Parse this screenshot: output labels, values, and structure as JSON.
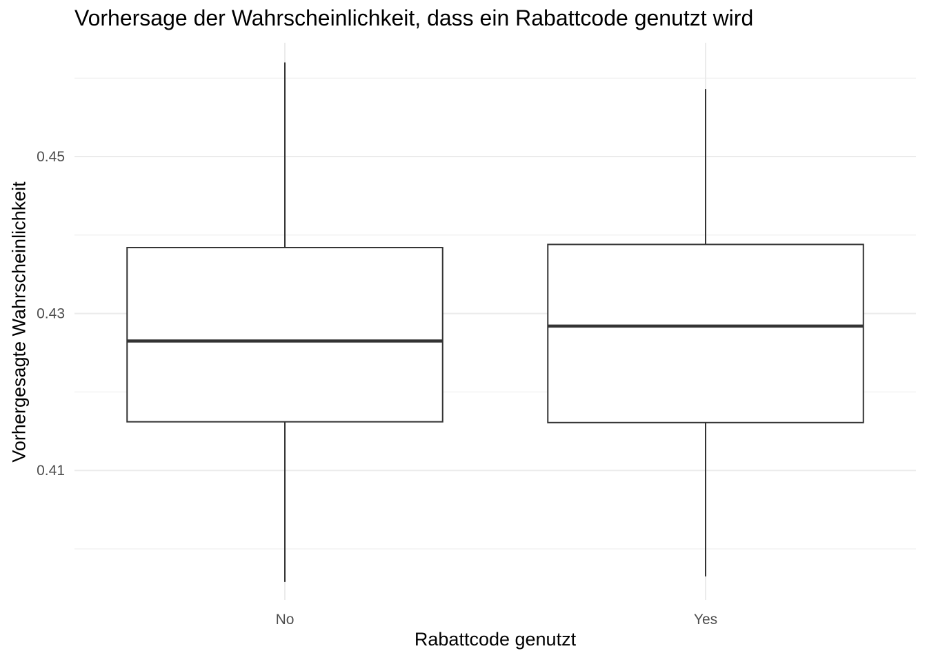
{
  "chart_data": {
    "type": "boxplot",
    "title": "Vorhersage der Wahrscheinlichkeit, dass ein Rabattcode genutzt wird",
    "xlabel": "Rabattcode genutzt",
    "ylabel": "Vorhergesagte Wahrscheinlichkeit",
    "categories": [
      "No",
      "Yes"
    ],
    "boxes": [
      {
        "category": "No",
        "min": 0.3958,
        "q1": 0.4162,
        "median": 0.4265,
        "q3": 0.4384,
        "max": 0.462
      },
      {
        "category": "Yes",
        "min": 0.3965,
        "q1": 0.4161,
        "median": 0.4284,
        "q3": 0.4388,
        "max": 0.4586
      }
    ],
    "yticks": [
      0.41,
      0.43,
      0.45
    ],
    "ytick_labels": [
      "0.41",
      "0.43",
      "0.45"
    ],
    "ylim": [
      0.3935,
      0.4645
    ],
    "grid": true,
    "colors": {
      "box_fill": "#ffffff",
      "box_stroke": "#333333",
      "grid": "#ebebeb",
      "tick_text": "#4d4d4d"
    }
  }
}
